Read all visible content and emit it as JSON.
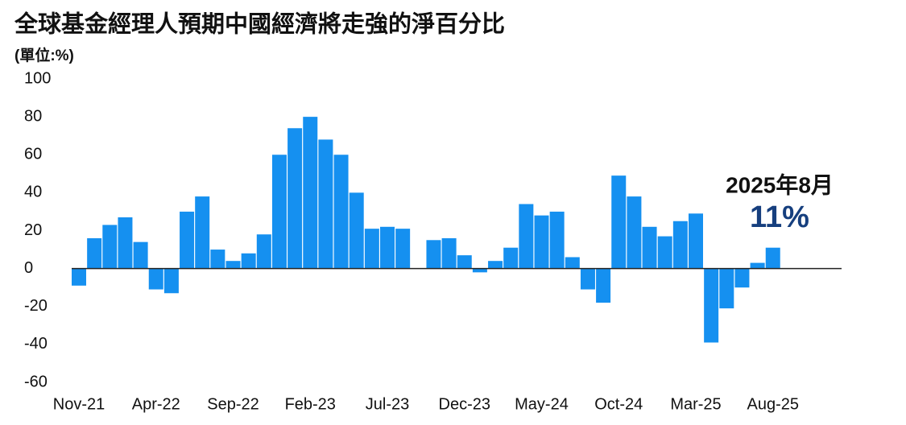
{
  "chart_data": {
    "type": "bar",
    "title": "全球基金經理人預期中國經濟將走強的淨百分比",
    "subtitle": "(單位:%)",
    "annotation": {
      "date": "2025年8月",
      "value_label": "11%"
    },
    "categories": [
      "Nov-21",
      null,
      null,
      null,
      null,
      "Apr-22",
      null,
      null,
      null,
      null,
      "Sep-22",
      null,
      null,
      null,
      null,
      "Feb-23",
      null,
      null,
      null,
      null,
      "Jul-23",
      null,
      null,
      null,
      null,
      "Dec-23",
      null,
      null,
      null,
      null,
      "May-24",
      null,
      null,
      null,
      null,
      "Oct-24",
      null,
      null,
      null,
      null,
      "Mar-25",
      null,
      null,
      null,
      null,
      "Aug-25"
    ],
    "values": [
      -9,
      16,
      23,
      27,
      14,
      -11,
      -13,
      30,
      38,
      10,
      4,
      8,
      18,
      60,
      74,
      80,
      68,
      60,
      40,
      21,
      22,
      21,
      null,
      15,
      16,
      7,
      -2,
      4,
      11,
      34,
      28,
      30,
      6,
      -11,
      -18,
      49,
      38,
      22,
      17,
      25,
      29,
      -39,
      -21,
      -10,
      3,
      11
    ],
    "color": "#1590f0",
    "ylim": [
      -60,
      100
    ],
    "yticks": [
      -60,
      -40,
      -20,
      0,
      20,
      40,
      60,
      80,
      100
    ],
    "grid": false
  }
}
